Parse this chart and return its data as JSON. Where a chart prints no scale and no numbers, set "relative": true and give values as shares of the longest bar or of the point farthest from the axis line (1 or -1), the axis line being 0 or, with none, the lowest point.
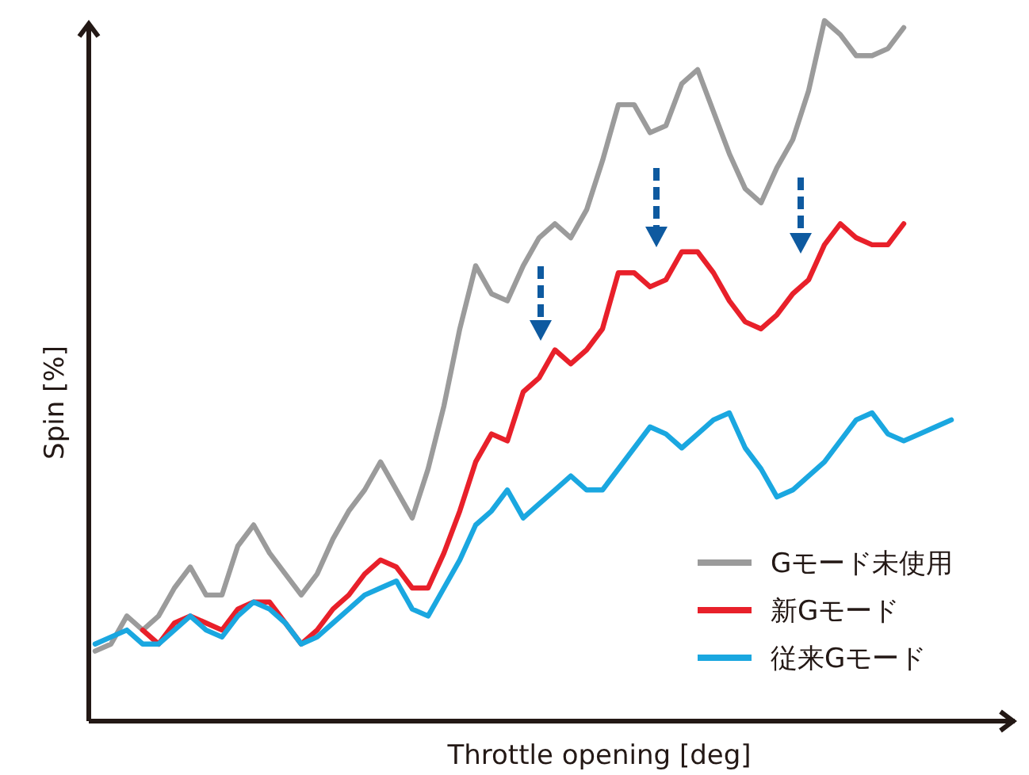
{
  "chart_data": {
    "type": "line",
    "relative": true,
    "xlabel": "Throttle opening [deg]",
    "ylabel": "Spin [%]",
    "legend": "bottom right",
    "categories": [
      null,
      null,
      null,
      null,
      null,
      null,
      null,
      null,
      null,
      null,
      null,
      null,
      null,
      null,
      null,
      null,
      null,
      null,
      null,
      null,
      null,
      null,
      null,
      null,
      null,
      null,
      null,
      null,
      null,
      null,
      null,
      null,
      null,
      null,
      null,
      null,
      null,
      null,
      null,
      null,
      null,
      null,
      null,
      null,
      null,
      null,
      null,
      null,
      null,
      null,
      null,
      null,
      null,
      null,
      null
    ],
    "series": [
      {
        "name": "Gモード未使用",
        "color": "#9b9b9b",
        "values": [
          0.1,
          0.11,
          0.15,
          0.13,
          0.15,
          0.19,
          0.22,
          0.18,
          0.18,
          0.25,
          0.28,
          0.24,
          0.21,
          0.18,
          0.21,
          0.26,
          0.3,
          0.33,
          0.37,
          0.33,
          0.29,
          0.36,
          0.45,
          0.56,
          0.65,
          0.61,
          0.6,
          0.65,
          0.69,
          0.71,
          0.69,
          0.73,
          0.8,
          0.88,
          0.88,
          0.84,
          0.85,
          0.91,
          0.93,
          0.87,
          0.81,
          0.76,
          0.74,
          0.79,
          0.83,
          0.9,
          1.0,
          0.98,
          0.95,
          0.95,
          0.96,
          0.99,
          null,
          null,
          null
        ]
      },
      {
        "name": "新Gモード",
        "color": "#e8202a",
        "values": [
          null,
          null,
          null,
          0.13,
          0.11,
          0.14,
          0.15,
          0.14,
          0.13,
          0.16,
          0.17,
          0.17,
          0.14,
          0.11,
          0.13,
          0.16,
          0.18,
          0.21,
          0.23,
          0.22,
          0.19,
          0.19,
          0.24,
          0.3,
          0.37,
          0.41,
          0.4,
          0.47,
          0.49,
          0.53,
          0.51,
          0.53,
          0.56,
          0.64,
          0.64,
          0.62,
          0.63,
          0.67,
          0.67,
          0.64,
          0.6,
          0.57,
          0.56,
          0.58,
          0.61,
          0.63,
          0.68,
          0.71,
          0.69,
          0.68,
          0.68,
          0.71,
          null,
          null,
          null
        ]
      },
      {
        "name": "従来Gモード",
        "color": "#1aa7e0",
        "values": [
          0.11,
          0.12,
          0.13,
          0.11,
          0.11,
          0.13,
          0.15,
          0.13,
          0.12,
          0.15,
          0.17,
          0.16,
          0.14,
          0.11,
          0.12,
          0.14,
          0.16,
          0.18,
          0.19,
          0.2,
          0.16,
          0.15,
          0.19,
          0.23,
          0.28,
          0.3,
          0.33,
          0.29,
          0.31,
          0.33,
          0.35,
          0.33,
          0.33,
          0.36,
          0.39,
          0.42,
          0.41,
          0.39,
          0.41,
          0.43,
          0.44,
          0.39,
          0.36,
          0.32,
          0.33,
          0.35,
          0.37,
          0.4,
          0.43,
          0.44,
          0.41,
          0.4,
          0.41,
          0.42,
          0.43
        ]
      }
    ]
  }
}
